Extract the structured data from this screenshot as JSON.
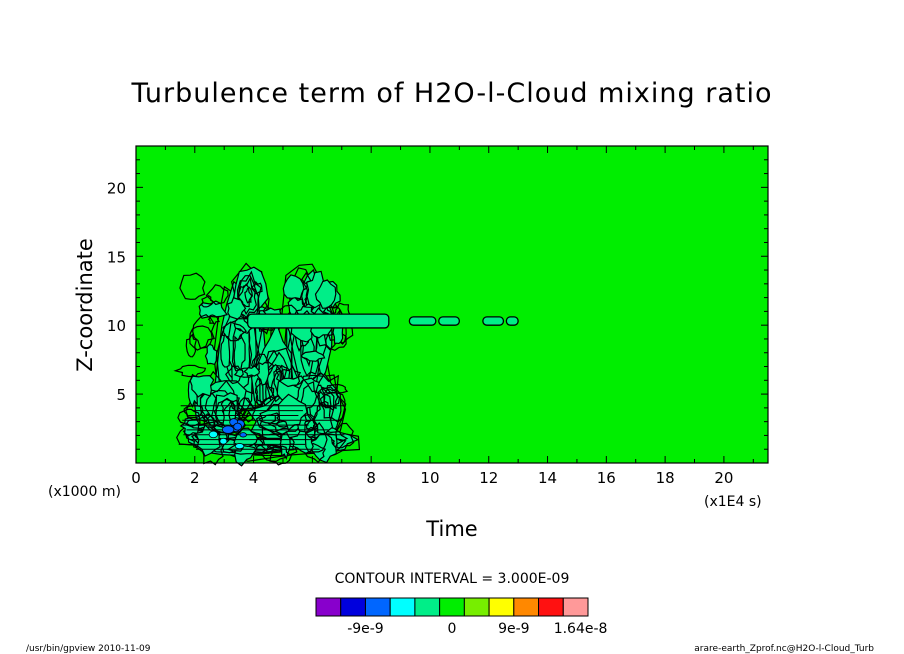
{
  "chart_data": {
    "type": "contour",
    "title": "Turbulence term of H2O-l-Cloud mixing ratio",
    "xlabel": "Time",
    "ylabel": "Z-coordinate",
    "x_unit": "(x1E4 s)",
    "y_unit": "(x1000 m)",
    "xlim": [
      0,
      21.5
    ],
    "ylim": [
      0,
      23
    ],
    "x_ticks": [
      0,
      2,
      4,
      6,
      8,
      10,
      12,
      14,
      16,
      18,
      20
    ],
    "y_ticks": [
      5,
      10,
      15,
      20
    ],
    "contour_interval_text": "CONTOUR INTERVAL = 3.000E-09",
    "background_color": "#00ee00",
    "colorbar": {
      "colors": [
        "#8800cc",
        "#0000dd",
        "#0066ff",
        "#00ffff",
        "#00ee88",
        "#00ee00",
        "#77ee00",
        "#ffff00",
        "#ff8800",
        "#ff1111",
        "#ff9999"
      ],
      "labels": [
        "-9e-9",
        "0",
        "9e-9",
        "1.64e-8"
      ]
    },
    "regions": [
      {
        "name": "upper-layer-band",
        "x": [
          3.8,
          8.6
        ],
        "y": [
          9.8,
          10.8
        ]
      },
      {
        "name": "upper-patch-1",
        "x": [
          9.3,
          10.2
        ],
        "y": [
          10.0,
          10.6
        ]
      },
      {
        "name": "upper-patch-2",
        "x": [
          10.3,
          11.0
        ],
        "y": [
          10.0,
          10.6
        ]
      },
      {
        "name": "upper-patch-3",
        "x": [
          11.8,
          12.5
        ],
        "y": [
          10.0,
          10.6
        ]
      },
      {
        "name": "upper-patch-4",
        "x": [
          12.6,
          13.0
        ],
        "y": [
          10.0,
          10.6
        ]
      },
      {
        "name": "convective-column",
        "x": [
          1.2,
          7.5
        ],
        "y": [
          0,
          14.8
        ]
      }
    ]
  },
  "footer": {
    "left": "/usr/bin/gpview  2010-11-09",
    "right": "arare-earth_Zprof.nc@H2O-l-Cloud_Turb"
  }
}
